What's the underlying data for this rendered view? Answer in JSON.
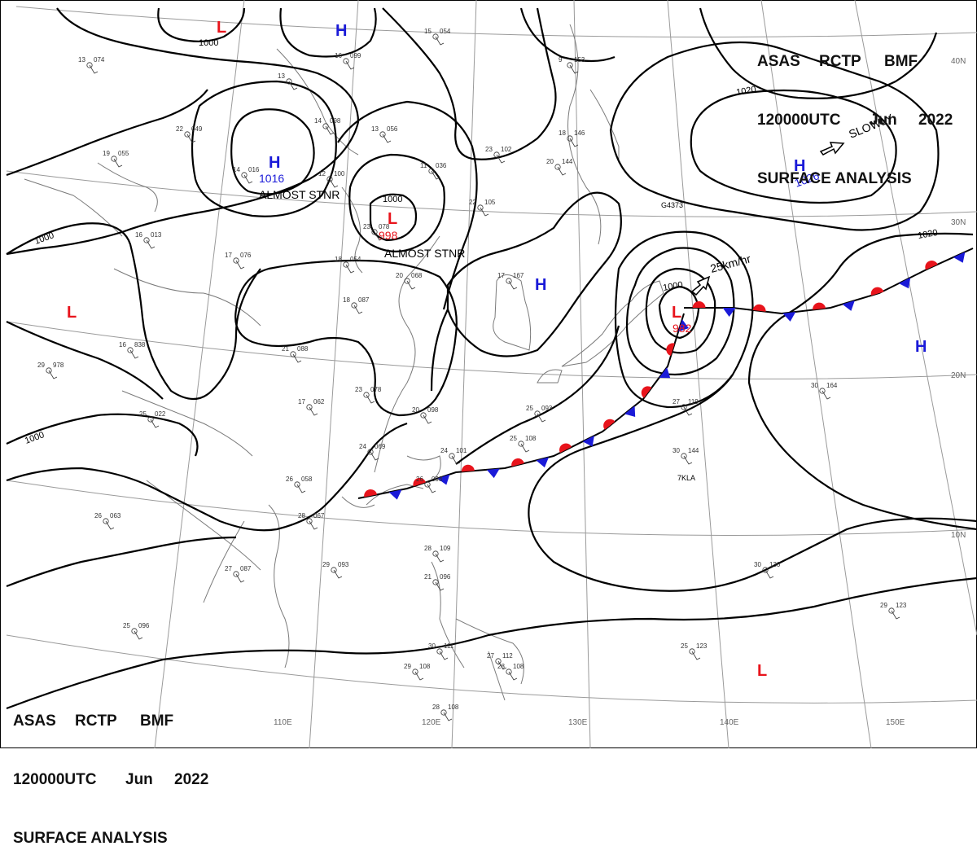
{
  "header": {
    "agency": "ASAS",
    "station": "RCTP",
    "office": "BMF",
    "time": "120000UTC",
    "month": "Jun",
    "year": "2022",
    "title": "SURFACE ANALYSIS"
  },
  "latitude_labels": [
    "40N",
    "30N",
    "20N",
    "10N"
  ],
  "longitude_labels": [
    "110E",
    "120E",
    "130E",
    "140E",
    "150E"
  ],
  "pressure_centers": [
    {
      "type": "L",
      "color": "#e8141c"
    },
    {
      "type": "H",
      "color": "#1a1ad8"
    },
    {
      "type": "H",
      "value": "1016",
      "color": "#1a1ad8"
    },
    {
      "type": "L",
      "value": "998",
      "color": "#e8141c"
    },
    {
      "type": "L",
      "color": "#e8141c"
    },
    {
      "type": "H",
      "color": "#1a1ad8"
    },
    {
      "type": "H",
      "value": "1026",
      "color": "#1a1ad8"
    },
    {
      "type": "L",
      "value": "982",
      "color": "#e8141c"
    },
    {
      "type": "H",
      "color": "#1a1ad8"
    },
    {
      "type": "L",
      "color": "#e8141c"
    }
  ],
  "isobar_labels": [
    "1000",
    "1000",
    "1000",
    "1000",
    "1000",
    "1020",
    "1020"
  ],
  "annotations": {
    "almost_stnr_1": "ALMOST STNR",
    "almost_stnr_2": "ALMOST STNR",
    "slowly": "SLOWLY",
    "speed": "25km/hr",
    "ship_1": "7KLA",
    "ship_2": "G4373"
  },
  "station_reports": [
    {
      "t": "13",
      "p": "074"
    },
    {
      "t": "16",
      "p": "099"
    },
    {
      "t": "13",
      "p": ""
    },
    {
      "t": "15",
      "p": "054"
    },
    {
      "t": "14",
      "p": "098"
    },
    {
      "t": "13",
      "p": "056"
    },
    {
      "t": "22",
      "p": "049"
    },
    {
      "t": "19",
      "p": "055"
    },
    {
      "t": "14",
      "p": "016"
    },
    {
      "t": "12",
      "p": "100"
    },
    {
      "t": "11",
      "p": "036"
    },
    {
      "t": "23",
      "p": "102"
    },
    {
      "t": "20",
      "p": "144"
    },
    {
      "t": "18",
      "p": "146"
    },
    {
      "t": "9",
      "p": "153"
    },
    {
      "t": "16",
      "p": "013"
    },
    {
      "t": "17",
      "p": "076"
    },
    {
      "t": "18",
      "p": "054"
    },
    {
      "t": "20",
      "p": "068"
    },
    {
      "t": "18",
      "p": "087"
    },
    {
      "t": "22",
      "p": "105"
    },
    {
      "t": "17",
      "p": "167"
    },
    {
      "t": "21",
      "p": "088"
    },
    {
      "t": "16",
      "p": "838"
    },
    {
      "t": "29",
      "p": "978"
    },
    {
      "t": "25",
      "p": "022"
    },
    {
      "t": "23",
      "p": "078"
    },
    {
      "t": "17",
      "p": "062"
    },
    {
      "t": "20",
      "p": "098"
    },
    {
      "t": "24",
      "p": "069"
    },
    {
      "t": "24",
      "p": "101"
    },
    {
      "t": "25",
      "p": "108"
    },
    {
      "t": "25",
      "p": "093"
    },
    {
      "t": "26",
      "p": "098"
    },
    {
      "t": "26",
      "p": "058"
    },
    {
      "t": "28",
      "p": "067"
    },
    {
      "t": "26",
      "p": "063"
    },
    {
      "t": "27",
      "p": "087"
    },
    {
      "t": "29",
      "p": "093"
    },
    {
      "t": "25",
      "p": "096"
    },
    {
      "t": "28",
      "p": "109"
    },
    {
      "t": "21",
      "p": "096"
    },
    {
      "t": "30",
      "p": "111"
    },
    {
      "t": "29",
      "p": "108"
    },
    {
      "t": "27",
      "p": "112"
    },
    {
      "t": "28",
      "p": "108"
    },
    {
      "t": "28",
      "p": "108"
    },
    {
      "t": "30",
      "p": "144"
    },
    {
      "t": "27",
      "p": "119"
    },
    {
      "t": "30",
      "p": "164"
    },
    {
      "t": "30",
      "p": "130"
    },
    {
      "t": "29",
      "p": "123"
    },
    {
      "t": "25",
      "p": "123"
    },
    {
      "t": "23",
      "p": "078"
    }
  ],
  "colors": {
    "warm_front": "#e8141c",
    "cold_front": "#1a1ad8",
    "isobar": "#000000",
    "coast": "#7a7a7a",
    "grid": "#9a9a9a"
  }
}
